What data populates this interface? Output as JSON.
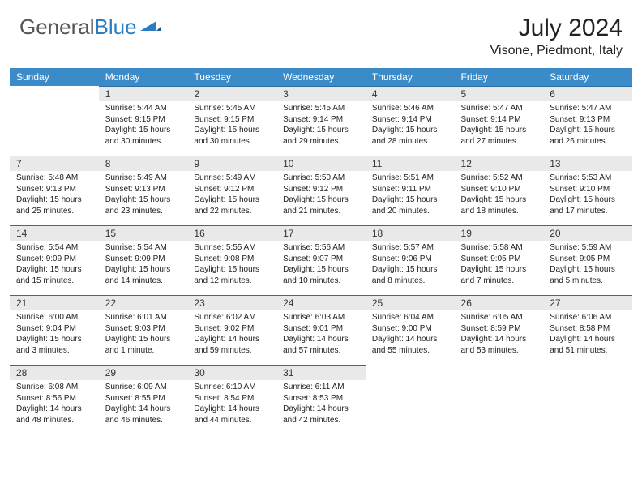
{
  "logo": {
    "part1": "General",
    "part2": "Blue"
  },
  "title": "July 2024",
  "location": "Visone, Piedmont, Italy",
  "colors": {
    "header_bg": "#3b8bc9",
    "header_text": "#ffffff",
    "daynum_bg": "#e9e9e9",
    "border": "#2b6ca3",
    "logo_gray": "#555555",
    "logo_blue": "#2b7cc0"
  },
  "weekdays": [
    "Sunday",
    "Monday",
    "Tuesday",
    "Wednesday",
    "Thursday",
    "Friday",
    "Saturday"
  ],
  "weeks": [
    [
      {
        "n": "",
        "sr": "",
        "ss": "",
        "dl": ""
      },
      {
        "n": "1",
        "sr": "Sunrise: 5:44 AM",
        "ss": "Sunset: 9:15 PM",
        "dl": "Daylight: 15 hours and 30 minutes."
      },
      {
        "n": "2",
        "sr": "Sunrise: 5:45 AM",
        "ss": "Sunset: 9:15 PM",
        "dl": "Daylight: 15 hours and 30 minutes."
      },
      {
        "n": "3",
        "sr": "Sunrise: 5:45 AM",
        "ss": "Sunset: 9:14 PM",
        "dl": "Daylight: 15 hours and 29 minutes."
      },
      {
        "n": "4",
        "sr": "Sunrise: 5:46 AM",
        "ss": "Sunset: 9:14 PM",
        "dl": "Daylight: 15 hours and 28 minutes."
      },
      {
        "n": "5",
        "sr": "Sunrise: 5:47 AM",
        "ss": "Sunset: 9:14 PM",
        "dl": "Daylight: 15 hours and 27 minutes."
      },
      {
        "n": "6",
        "sr": "Sunrise: 5:47 AM",
        "ss": "Sunset: 9:13 PM",
        "dl": "Daylight: 15 hours and 26 minutes."
      }
    ],
    [
      {
        "n": "7",
        "sr": "Sunrise: 5:48 AM",
        "ss": "Sunset: 9:13 PM",
        "dl": "Daylight: 15 hours and 25 minutes."
      },
      {
        "n": "8",
        "sr": "Sunrise: 5:49 AM",
        "ss": "Sunset: 9:13 PM",
        "dl": "Daylight: 15 hours and 23 minutes."
      },
      {
        "n": "9",
        "sr": "Sunrise: 5:49 AM",
        "ss": "Sunset: 9:12 PM",
        "dl": "Daylight: 15 hours and 22 minutes."
      },
      {
        "n": "10",
        "sr": "Sunrise: 5:50 AM",
        "ss": "Sunset: 9:12 PM",
        "dl": "Daylight: 15 hours and 21 minutes."
      },
      {
        "n": "11",
        "sr": "Sunrise: 5:51 AM",
        "ss": "Sunset: 9:11 PM",
        "dl": "Daylight: 15 hours and 20 minutes."
      },
      {
        "n": "12",
        "sr": "Sunrise: 5:52 AM",
        "ss": "Sunset: 9:10 PM",
        "dl": "Daylight: 15 hours and 18 minutes."
      },
      {
        "n": "13",
        "sr": "Sunrise: 5:53 AM",
        "ss": "Sunset: 9:10 PM",
        "dl": "Daylight: 15 hours and 17 minutes."
      }
    ],
    [
      {
        "n": "14",
        "sr": "Sunrise: 5:54 AM",
        "ss": "Sunset: 9:09 PM",
        "dl": "Daylight: 15 hours and 15 minutes."
      },
      {
        "n": "15",
        "sr": "Sunrise: 5:54 AM",
        "ss": "Sunset: 9:09 PM",
        "dl": "Daylight: 15 hours and 14 minutes."
      },
      {
        "n": "16",
        "sr": "Sunrise: 5:55 AM",
        "ss": "Sunset: 9:08 PM",
        "dl": "Daylight: 15 hours and 12 minutes."
      },
      {
        "n": "17",
        "sr": "Sunrise: 5:56 AM",
        "ss": "Sunset: 9:07 PM",
        "dl": "Daylight: 15 hours and 10 minutes."
      },
      {
        "n": "18",
        "sr": "Sunrise: 5:57 AM",
        "ss": "Sunset: 9:06 PM",
        "dl": "Daylight: 15 hours and 8 minutes."
      },
      {
        "n": "19",
        "sr": "Sunrise: 5:58 AM",
        "ss": "Sunset: 9:05 PM",
        "dl": "Daylight: 15 hours and 7 minutes."
      },
      {
        "n": "20",
        "sr": "Sunrise: 5:59 AM",
        "ss": "Sunset: 9:05 PM",
        "dl": "Daylight: 15 hours and 5 minutes."
      }
    ],
    [
      {
        "n": "21",
        "sr": "Sunrise: 6:00 AM",
        "ss": "Sunset: 9:04 PM",
        "dl": "Daylight: 15 hours and 3 minutes."
      },
      {
        "n": "22",
        "sr": "Sunrise: 6:01 AM",
        "ss": "Sunset: 9:03 PM",
        "dl": "Daylight: 15 hours and 1 minute."
      },
      {
        "n": "23",
        "sr": "Sunrise: 6:02 AM",
        "ss": "Sunset: 9:02 PM",
        "dl": "Daylight: 14 hours and 59 minutes."
      },
      {
        "n": "24",
        "sr": "Sunrise: 6:03 AM",
        "ss": "Sunset: 9:01 PM",
        "dl": "Daylight: 14 hours and 57 minutes."
      },
      {
        "n": "25",
        "sr": "Sunrise: 6:04 AM",
        "ss": "Sunset: 9:00 PM",
        "dl": "Daylight: 14 hours and 55 minutes."
      },
      {
        "n": "26",
        "sr": "Sunrise: 6:05 AM",
        "ss": "Sunset: 8:59 PM",
        "dl": "Daylight: 14 hours and 53 minutes."
      },
      {
        "n": "27",
        "sr": "Sunrise: 6:06 AM",
        "ss": "Sunset: 8:58 PM",
        "dl": "Daylight: 14 hours and 51 minutes."
      }
    ],
    [
      {
        "n": "28",
        "sr": "Sunrise: 6:08 AM",
        "ss": "Sunset: 8:56 PM",
        "dl": "Daylight: 14 hours and 48 minutes."
      },
      {
        "n": "29",
        "sr": "Sunrise: 6:09 AM",
        "ss": "Sunset: 8:55 PM",
        "dl": "Daylight: 14 hours and 46 minutes."
      },
      {
        "n": "30",
        "sr": "Sunrise: 6:10 AM",
        "ss": "Sunset: 8:54 PM",
        "dl": "Daylight: 14 hours and 44 minutes."
      },
      {
        "n": "31",
        "sr": "Sunrise: 6:11 AM",
        "ss": "Sunset: 8:53 PM",
        "dl": "Daylight: 14 hours and 42 minutes."
      },
      {
        "n": "",
        "sr": "",
        "ss": "",
        "dl": ""
      },
      {
        "n": "",
        "sr": "",
        "ss": "",
        "dl": ""
      },
      {
        "n": "",
        "sr": "",
        "ss": "",
        "dl": ""
      }
    ]
  ]
}
